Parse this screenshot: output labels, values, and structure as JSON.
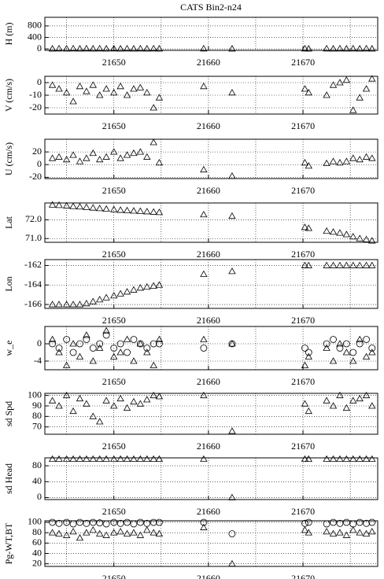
{
  "title": "CATS Bin2-n24",
  "chart_data": [
    {
      "type": "scatter",
      "ylabel": "H (m)",
      "ylim": [
        -50,
        1100
      ],
      "yticks": [
        0,
        400,
        800
      ],
      "x": [
        21643.5,
        21644.2,
        21645,
        21645.7,
        21646.4,
        21647.1,
        21647.8,
        21648.5,
        21649.2,
        21650,
        21650.7,
        21651.4,
        21652.1,
        21652.8,
        21653.5,
        21654.2,
        21654.8,
        21659.5,
        21662.5,
        21670.2,
        21670.6,
        21672.5,
        21673.2,
        21673.9,
        21674.6,
        21675.3,
        21676,
        21676.7,
        21677.3
      ],
      "series": [
        {
          "marker": "triangle",
          "color": "#000000",
          "values": [
            5,
            10,
            5,
            10,
            5,
            10,
            5,
            10,
            5,
            10,
            5,
            10,
            5,
            10,
            5,
            10,
            5,
            10,
            5,
            10,
            5,
            10,
            5,
            10,
            5,
            10,
            5,
            10,
            5
          ]
        }
      ]
    },
    {
      "type": "scatter",
      "ylabel": "V (cm/s)",
      "ylim": [
        -25,
        5
      ],
      "yticks": [
        0,
        -10,
        -20
      ],
      "x": [
        21643.5,
        21644.2,
        21645,
        21645.7,
        21646.4,
        21647.1,
        21647.8,
        21648.5,
        21649.2,
        21650,
        21650.7,
        21651.4,
        21652.1,
        21652.8,
        21653.5,
        21654.2,
        21654.8,
        21659.5,
        21662.5,
        21670.2,
        21670.6,
        21672.5,
        21673.2,
        21673.9,
        21674.6,
        21675.3,
        21676,
        21676.7,
        21677.3
      ],
      "series": [
        {
          "marker": "triangle",
          "color": "#000000",
          "values": [
            -2,
            -5,
            -8,
            -15,
            -3,
            -7,
            -2,
            -10,
            -5,
            -8,
            -3,
            -10,
            -5,
            -4,
            -8,
            -20,
            -12,
            -3,
            -8,
            -5,
            -8,
            -10,
            -2,
            0,
            2,
            -22,
            -12,
            -5,
            3
          ]
        }
      ]
    },
    {
      "type": "scatter",
      "ylabel": "U (cm/s)",
      "ylim": [
        -22,
        40
      ],
      "yticks": [
        -20,
        0,
        20
      ],
      "x": [
        21643.5,
        21644.2,
        21645,
        21645.7,
        21646.4,
        21647.1,
        21647.8,
        21648.5,
        21649.2,
        21650,
        21650.7,
        21651.4,
        21652.1,
        21652.8,
        21653.5,
        21654.2,
        21654.8,
        21659.5,
        21662.5,
        21670.2,
        21670.6,
        21672.5,
        21673.2,
        21673.9,
        21674.6,
        21675.3,
        21676,
        21676.7,
        21677.3
      ],
      "series": [
        {
          "marker": "triangle",
          "color": "#000000",
          "values": [
            10,
            12,
            8,
            15,
            5,
            10,
            18,
            8,
            12,
            20,
            10,
            15,
            18,
            20,
            12,
            35,
            3,
            -8,
            -18,
            3,
            -2,
            2,
            5,
            3,
            5,
            10,
            8,
            12,
            10
          ]
        }
      ]
    },
    {
      "type": "scatter",
      "ylabel": "Lat",
      "ylim": [
        70.8,
        72.9
      ],
      "yticks": [
        {
          "value": 72,
          "label": "72.0"
        },
        {
          "value": 71,
          "label": "71.0"
        }
      ],
      "x": [
        21643.5,
        21644.2,
        21645,
        21645.7,
        21646.4,
        21647.1,
        21647.8,
        21648.5,
        21649.2,
        21650,
        21650.7,
        21651.4,
        21652.1,
        21652.8,
        21653.5,
        21654.2,
        21654.8,
        21659.5,
        21662.5,
        21670.2,
        21670.6,
        21672.5,
        21673.2,
        21673.9,
        21674.6,
        21675.3,
        21676,
        21676.7,
        21677.3
      ],
      "series": [
        {
          "marker": "triangle",
          "color": "#000000",
          "values": [
            72.8,
            72.78,
            72.75,
            72.72,
            72.7,
            72.67,
            72.64,
            72.61,
            72.58,
            72.55,
            72.52,
            72.5,
            72.48,
            72.46,
            72.44,
            72.42,
            72.4,
            72.28,
            72.2,
            71.6,
            71.55,
            71.4,
            71.35,
            71.3,
            71.22,
            71.1,
            71.0,
            70.95,
            70.88
          ]
        }
      ]
    },
    {
      "type": "scatter",
      "ylabel": "Lon",
      "ylim": [
        -166.4,
        -161.4
      ],
      "yticks": [
        -162,
        -164,
        -166
      ],
      "x": [
        21643.5,
        21644.2,
        21645,
        21645.7,
        21646.4,
        21647.1,
        21647.8,
        21648.5,
        21649.2,
        21650,
        21650.7,
        21651.4,
        21652.1,
        21652.8,
        21653.5,
        21654.2,
        21654.8,
        21659.5,
        21662.5,
        21670.2,
        21670.6,
        21672.5,
        21673.2,
        21673.9,
        21674.6,
        21675.3,
        21676,
        21676.7,
        21677.3
      ],
      "series": [
        {
          "marker": "triangle",
          "color": "#000000",
          "values": [
            -166,
            -166,
            -166,
            -166,
            -166,
            -165.9,
            -165.7,
            -165.5,
            -165.3,
            -165.1,
            -164.9,
            -164.7,
            -164.5,
            -164.3,
            -164.2,
            -164.1,
            -164,
            -162.9,
            -162.6,
            -162,
            -162,
            -162,
            -162,
            -162,
            -162,
            -162,
            -162,
            -162,
            -162
          ]
        }
      ]
    },
    {
      "type": "scatter",
      "ylabel": "w_e",
      "ylim": [
        -6,
        4
      ],
      "yticks": [
        0,
        -4
      ],
      "x": [
        21643.5,
        21644.2,
        21645,
        21645.7,
        21646.4,
        21647.1,
        21647.8,
        21648.5,
        21649.2,
        21650,
        21650.7,
        21651.4,
        21652.1,
        21652.8,
        21653.5,
        21654.2,
        21654.8,
        21659.5,
        21662.5,
        21670.2,
        21670.6,
        21672.5,
        21673.2,
        21673.9,
        21674.6,
        21675.3,
        21676,
        21676.7,
        21677.3
      ],
      "series": [
        {
          "marker": "triangle",
          "color": "#000000",
          "values": [
            1,
            -2,
            -5,
            0,
            -3,
            2,
            -4,
            -1,
            3,
            -3,
            -2,
            1,
            -4,
            0,
            -2,
            -5,
            1,
            1,
            0,
            -5,
            -3,
            -1,
            -4,
            0,
            -2,
            -4,
            1,
            -3,
            -2
          ]
        },
        {
          "marker": "circle",
          "color": "#000000",
          "values": [
            0,
            -1,
            1,
            -2,
            0,
            1,
            -1,
            0,
            2,
            -1,
            0,
            -2,
            1,
            0,
            -1,
            0,
            0,
            -1,
            0,
            -1,
            -2,
            0,
            1,
            -1,
            0,
            -2,
            0,
            1,
            -1
          ]
        }
      ]
    },
    {
      "type": "scatter",
      "ylabel": "sd Spd",
      "ylim": [
        63,
        102
      ],
      "yticks": [
        100,
        90,
        80,
        70
      ],
      "x": [
        21643.5,
        21644.2,
        21645,
        21645.7,
        21646.4,
        21647.1,
        21647.8,
        21648.5,
        21649.2,
        21650,
        21650.7,
        21651.4,
        21652.1,
        21652.8,
        21653.5,
        21654.2,
        21654.8,
        21659.5,
        21662.5,
        21670.2,
        21670.6,
        21672.5,
        21673.2,
        21673.9,
        21674.6,
        21675.3,
        21676,
        21676.7,
        21677.3
      ],
      "series": [
        {
          "marker": "triangle",
          "color": "#000000",
          "values": [
            95,
            90,
            100,
            85,
            97,
            92,
            80,
            75,
            95,
            90,
            97,
            88,
            94,
            92,
            96,
            100,
            99,
            100,
            66,
            92,
            85,
            95,
            90,
            100,
            88,
            95,
            97,
            100,
            90
          ]
        }
      ]
    },
    {
      "type": "scatter",
      "ylabel": "sd Head",
      "ylim": [
        -5,
        100
      ],
      "yticks": [
        0,
        40,
        80
      ],
      "x": [
        21643.5,
        21644.2,
        21645,
        21645.7,
        21646.4,
        21647.1,
        21647.8,
        21648.5,
        21649.2,
        21650,
        21650.7,
        21651.4,
        21652.1,
        21652.8,
        21653.5,
        21654.2,
        21654.8,
        21659.5,
        21662.5,
        21670.2,
        21670.6,
        21672.5,
        21673.2,
        21673.9,
        21674.6,
        21675.3,
        21676,
        21676.7,
        21677.3
      ],
      "series": [
        {
          "marker": "triangle",
          "color": "#000000",
          "values": [
            97,
            97,
            97,
            97,
            97,
            97,
            97,
            97,
            97,
            97,
            97,
            97,
            97,
            97,
            97,
            97,
            97,
            97,
            0,
            97,
            97,
            97,
            97,
            97,
            97,
            97,
            97,
            97,
            97
          ]
        }
      ]
    },
    {
      "type": "scatter",
      "ylabel": "Pg-WT,BT",
      "ylim": [
        15,
        103
      ],
      "yticks": [
        100,
        80,
        60,
        40,
        20
      ],
      "x": [
        21643.5,
        21644.2,
        21645,
        21645.7,
        21646.4,
        21647.1,
        21647.8,
        21648.5,
        21649.2,
        21650,
        21650.7,
        21651.4,
        21652.1,
        21652.8,
        21653.5,
        21654.2,
        21654.8,
        21659.5,
        21662.5,
        21670.2,
        21670.6,
        21672.5,
        21673.2,
        21673.9,
        21674.6,
        21675.3,
        21676,
        21676.7,
        21677.3
      ],
      "series": [
        {
          "marker": "triangle",
          "color": "#000000",
          "values": [
            80,
            78,
            75,
            82,
            70,
            80,
            85,
            78,
            75,
            80,
            82,
            78,
            80,
            75,
            85,
            80,
            78,
            90,
            20,
            85,
            80,
            82,
            78,
            80,
            75,
            85,
            80,
            78,
            82
          ]
        },
        {
          "marker": "circle",
          "color": "#000000",
          "values": [
            100,
            98,
            100,
            97,
            100,
            98,
            100,
            99,
            97,
            100,
            98,
            100,
            97,
            100,
            98,
            100,
            100,
            100,
            78,
            98,
            100,
            97,
            100,
            98,
            100,
            97,
            100,
            98,
            100
          ]
        }
      ]
    }
  ],
  "xlim": [
    21642.7,
    21677.9
  ],
  "xticks": [
    21650,
    21660,
    21670
  ],
  "xgrid": [
    21645,
    21650,
    21655,
    21660,
    21665,
    21670,
    21675
  ]
}
